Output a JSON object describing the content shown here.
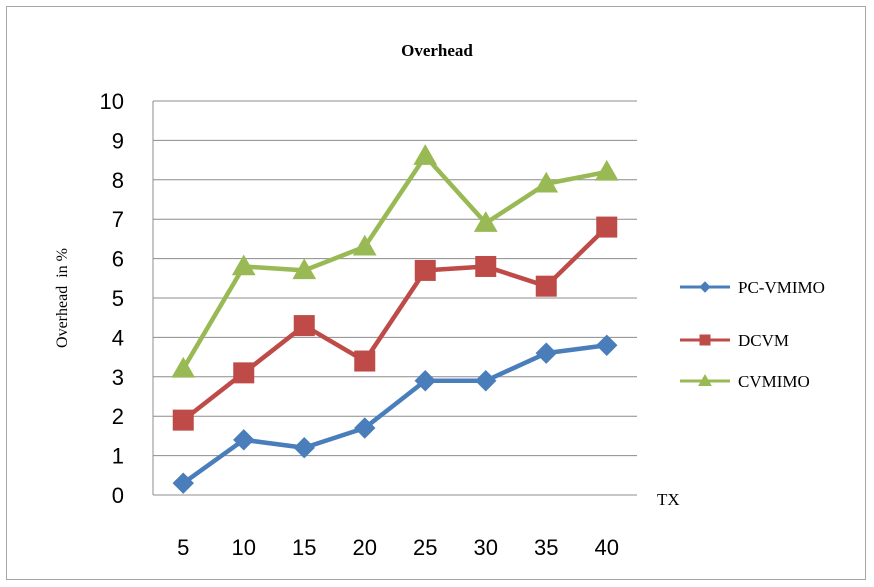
{
  "chart_data": {
    "type": "line",
    "title": "Overhead",
    "xlabel": "TX",
    "ylabel": "Overhead  in %",
    "categories": [
      "5",
      "10",
      "15",
      "20",
      "25",
      "30",
      "35",
      "40"
    ],
    "ylim": [
      0,
      10
    ],
    "yticks": [
      "0",
      "1",
      "2",
      "3",
      "4",
      "5",
      "6",
      "7",
      "8",
      "9",
      "10"
    ],
    "grid": true,
    "legend_position": "right",
    "series": [
      {
        "name": "PC-VMIMO",
        "values": [
          0.3,
          1.4,
          1.2,
          1.7,
          2.9,
          2.9,
          3.6,
          3.8
        ],
        "color": "#4a7ebb",
        "marker": "diamond"
      },
      {
        "name": "DCVM",
        "values": [
          1.9,
          3.1,
          4.3,
          3.4,
          5.7,
          5.8,
          5.3,
          6.8
        ],
        "color": "#be4b48",
        "marker": "square"
      },
      {
        "name": "CVMIMO",
        "values": [
          3.2,
          5.8,
          5.7,
          6.3,
          8.6,
          6.9,
          7.9,
          8.2
        ],
        "color": "#98b954",
        "marker": "triangle"
      }
    ]
  }
}
